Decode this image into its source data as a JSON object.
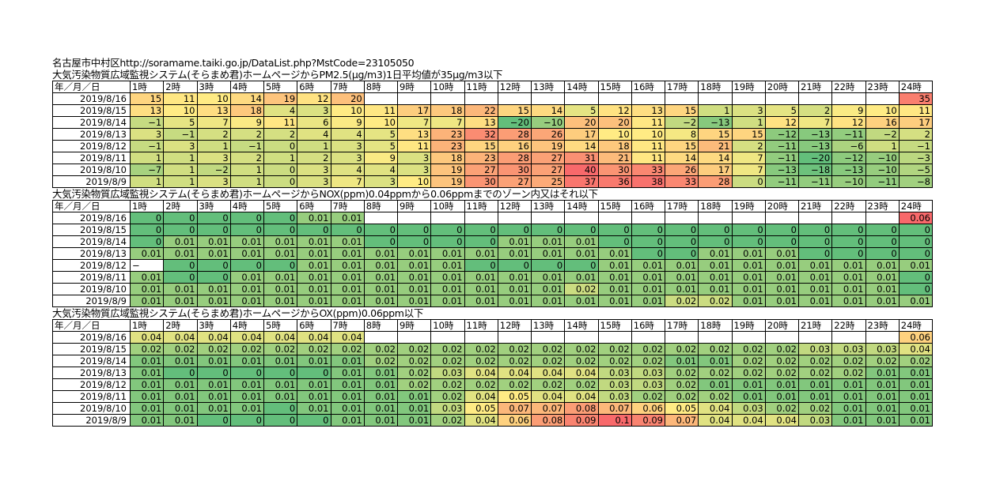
{
  "header": {
    "url_line": "名古屋市中村区http://soramame.taiki.go.jp/DataList.php?MstCode=23105050"
  },
  "columns": {
    "date_label": "年／月／日",
    "hours": [
      "1時",
      "2時",
      "3時",
      "4時",
      "5時",
      "6時",
      "7時",
      "8時",
      "9時",
      "10時",
      "11時",
      "12時",
      "13時",
      "14時",
      "15時",
      "16時",
      "17時",
      "18時",
      "19時",
      "20時",
      "21時",
      "22時",
      "23時",
      "24時"
    ]
  },
  "colors": {
    "high": "#f8696b",
    "mid": "#ffeb84",
    "low": "#63be7b"
  },
  "tables": [
    {
      "title": "大気汚染物質広域監視システム(そらまめ君)ホームページからPM2.5(μg/m3)1日平均値が35μg/m3以下",
      "color_min": -20,
      "color_max": 40,
      "rows": [
        {
          "date": "2019/8/16",
          "values": [
            "15",
            "11",
            "10",
            "14",
            "19",
            "12",
            "20",
            "",
            "",
            "",
            "",
            "",
            "",
            "",
            "",
            "",
            "",
            "",
            "",
            "",
            "",
            "",
            "",
            "35"
          ]
        },
        {
          "date": "2019/8/15",
          "values": [
            "13",
            "10",
            "13",
            "18",
            "4",
            "3",
            "10",
            "11",
            "17",
            "18",
            "22",
            "15",
            "14",
            "5",
            "12",
            "13",
            "15",
            "1",
            "3",
            "5",
            "2",
            "9",
            "10",
            "11"
          ]
        },
        {
          "date": "2019/8/14",
          "values": [
            "−1",
            "5",
            "7",
            "9",
            "11",
            "6",
            "9",
            "10",
            "7",
            "7",
            "13",
            "−20",
            "−10",
            "20",
            "20",
            "11",
            "−2",
            "−13",
            "1",
            "12",
            "7",
            "12",
            "16",
            "17"
          ]
        },
        {
          "date": "2019/8/13",
          "values": [
            "3",
            "−1",
            "2",
            "2",
            "2",
            "4",
            "4",
            "5",
            "13",
            "23",
            "32",
            "28",
            "26",
            "17",
            "10",
            "10",
            "8",
            "15",
            "15",
            "−12",
            "−13",
            "−11",
            "−2",
            "2"
          ]
        },
        {
          "date": "2019/8/12",
          "values": [
            "−1",
            "3",
            "1",
            "−1",
            "0",
            "1",
            "3",
            "5",
            "11",
            "23",
            "15",
            "16",
            "19",
            "14",
            "18",
            "11",
            "15",
            "21",
            "2",
            "−11",
            "−13",
            "−6",
            "1",
            "−1"
          ]
        },
        {
          "date": "2019/8/11",
          "values": [
            "1",
            "1",
            "3",
            "2",
            "1",
            "2",
            "3",
            "9",
            "3",
            "18",
            "23",
            "28",
            "27",
            "31",
            "21",
            "11",
            "14",
            "14",
            "7",
            "−11",
            "−20",
            "−12",
            "−10",
            "−3"
          ]
        },
        {
          "date": "2019/8/10",
          "values": [
            "−7",
            "1",
            "−2",
            "1",
            "0",
            "3",
            "4",
            "4",
            "3",
            "19",
            "27",
            "30",
            "27",
            "40",
            "30",
            "33",
            "26",
            "17",
            "7",
            "−13",
            "−18",
            "−13",
            "−10",
            "−5"
          ]
        },
        {
          "date": "2019/8/9",
          "values": [
            "1",
            "1",
            "3",
            "1",
            "0",
            "3",
            "7",
            "3",
            "10",
            "19",
            "30",
            "27",
            "25",
            "37",
            "36",
            "38",
            "33",
            "28",
            "0",
            "−11",
            "−11",
            "−10",
            "−11",
            "−8"
          ]
        }
      ]
    },
    {
      "title": "大気汚染物質広域監視システム(そらまめ君)ホームページからNOX(ppm)0.04ppmから0.06ppmまでのゾーン内又はそれ以下",
      "color_min": 0,
      "color_max": 0.06,
      "rows": [
        {
          "date": "2019/8/16",
          "values": [
            "0",
            "0",
            "0",
            "0",
            "0",
            "0.01",
            "0.01",
            "",
            "",
            "",
            "",
            "",
            "",
            "",
            "",
            "",
            "",
            "",
            "",
            "",
            "",
            "",
            "",
            "0.06"
          ]
        },
        {
          "date": "2019/8/15",
          "values": [
            "0",
            "0",
            "0",
            "0",
            "0",
            "0",
            "0",
            "0",
            "0",
            "0",
            "0",
            "0",
            "0",
            "0",
            "0",
            "0",
            "0",
            "0",
            "0",
            "0",
            "0",
            "0",
            "0",
            "0"
          ]
        },
        {
          "date": "2019/8/14",
          "values": [
            "0",
            "0.01",
            "0.01",
            "0.01",
            "0.01",
            "0.01",
            "0.01",
            "0",
            "0",
            "0",
            "0",
            "0.01",
            "0.01",
            "0.01",
            "0",
            "0",
            "0",
            "0",
            "0",
            "0",
            "0",
            "0",
            "0",
            "0"
          ]
        },
        {
          "date": "2019/8/13",
          "values": [
            "0.01",
            "0.01",
            "0.01",
            "0.01",
            "0.01",
            "0.01",
            "0.01",
            "0.01",
            "0.01",
            "0.01",
            "0.01",
            "0.01",
            "0.01",
            "0.01",
            "0.01",
            "0",
            "0",
            "0.01",
            "0.01",
            "0.01",
            "0",
            "0",
            "0",
            "0"
          ]
        },
        {
          "date": "2019/8/12",
          "values": [
            "−",
            "0",
            "0",
            "0",
            "0",
            "0.01",
            "0.01",
            "0.01",
            "0.01",
            "0.01",
            "0",
            "0",
            "0",
            "0",
            "0.01",
            "0.01",
            "0.01",
            "0.01",
            "0.01",
            "0.01",
            "0.01",
            "0.01",
            "0.01",
            "0.01"
          ]
        },
        {
          "date": "2019/8/11",
          "values": [
            "0.01",
            "0",
            "0",
            "0.01",
            "0.01",
            "0.01",
            "0.01",
            "0.01",
            "0.01",
            "0.01",
            "0.01",
            "0.01",
            "0.01",
            "0.01",
            "0.01",
            "0.01",
            "0.01",
            "0.01",
            "0.01",
            "0.01",
            "0.01",
            "0.01",
            "0.01",
            "0"
          ]
        },
        {
          "date": "2019/8/10",
          "values": [
            "0.01",
            "0.01",
            "0.01",
            "0.01",
            "0.01",
            "0.01",
            "0.01",
            "0.01",
            "0.01",
            "0.01",
            "0.01",
            "0.01",
            "0.01",
            "0.02",
            "0.01",
            "0.01",
            "0.01",
            "0.01",
            "0.01",
            "0.01",
            "0.01",
            "0.01",
            "0.01",
            "0"
          ]
        },
        {
          "date": "2019/8/9",
          "values": [
            "0.01",
            "0.01",
            "0.01",
            "0.01",
            "0.01",
            "0.01",
            "0.01",
            "0.01",
            "0.01",
            "0.01",
            "0.01",
            "0.01",
            "0.01",
            "0.01",
            "0.01",
            "0.01",
            "0.02",
            "0.02",
            "0.01",
            "0.01",
            "0.01",
            "0.01",
            "0.01",
            "0.01"
          ]
        }
      ]
    },
    {
      "title": "大気汚染物質広域監視システム(そらまめ君)ホームページからOX(ppm)0.06ppm以下",
      "color_min": 0,
      "color_max": 0.1,
      "rows": [
        {
          "date": "2019/8/16",
          "values": [
            "0.04",
            "0.04",
            "0.04",
            "0.04",
            "0.04",
            "0.04",
            "0.04",
            "",
            "",
            "",
            "",
            "",
            "",
            "",
            "",
            "",
            "",
            "",
            "",
            "",
            "",
            "",
            "",
            "0.06"
          ]
        },
        {
          "date": "2019/8/15",
          "values": [
            "0.02",
            "0.02",
            "0.02",
            "0.02",
            "0.02",
            "0.02",
            "0.02",
            "0.02",
            "0.02",
            "0.02",
            "0.02",
            "0.02",
            "0.02",
            "0.02",
            "0.02",
            "0.02",
            "0.02",
            "0.02",
            "0.02",
            "0.02",
            "0.03",
            "0.03",
            "0.03",
            "0.04"
          ]
        },
        {
          "date": "2019/8/14",
          "values": [
            "0.01",
            "0.01",
            "0.01",
            "0.01",
            "0.01",
            "0.01",
            "0.01",
            "0.02",
            "0.02",
            "0.02",
            "0.02",
            "0.02",
            "0.02",
            "0.02",
            "0.02",
            "0.02",
            "0.01",
            "0.01",
            "0.02",
            "0.02",
            "0.02",
            "0.02",
            "0.02",
            "0.02"
          ]
        },
        {
          "date": "2019/8/13",
          "values": [
            "0.01",
            "0",
            "0",
            "0",
            "0",
            "0",
            "0.01",
            "0.01",
            "0.02",
            "0.03",
            "0.04",
            "0.04",
            "0.04",
            "0.04",
            "0.03",
            "0.03",
            "0.02",
            "0.02",
            "0.02",
            "0.02",
            "0.02",
            "0.02",
            "0.01",
            "0.01"
          ]
        },
        {
          "date": "2019/8/12",
          "values": [
            "0.01",
            "0.01",
            "0.01",
            "0.01",
            "0.01",
            "0.01",
            "0.01",
            "0.01",
            "0.02",
            "0.02",
            "0.02",
            "0.02",
            "0.02",
            "0.02",
            "0.03",
            "0.03",
            "0.02",
            "0.01",
            "0.01",
            "0.01",
            "0.01",
            "0.01",
            "0.01",
            "0.01"
          ]
        },
        {
          "date": "2019/8/11",
          "values": [
            "0.01",
            "0.01",
            "0.01",
            "0.01",
            "0.01",
            "0.01",
            "0.01",
            "0.01",
            "0.01",
            "0.02",
            "0.04",
            "0.05",
            "0.04",
            "0.04",
            "0.03",
            "0.02",
            "0.02",
            "0.02",
            "0.01",
            "0.01",
            "0.01",
            "0.01",
            "0.01",
            "0.01"
          ]
        },
        {
          "date": "2019/8/10",
          "values": [
            "0.01",
            "0.01",
            "0.01",
            "0.01",
            "0",
            "0.01",
            "0.01",
            "0.01",
            "0.01",
            "0.03",
            "0.05",
            "0.07",
            "0.07",
            "0.08",
            "0.07",
            "0.06",
            "0.05",
            "0.04",
            "0.03",
            "0.02",
            "0.02",
            "0.01",
            "0.01",
            "0.01"
          ]
        },
        {
          "date": "2019/8/9",
          "values": [
            "0.01",
            "0.01",
            "0",
            "0",
            "0",
            "0",
            "0.01",
            "0.01",
            "0.01",
            "0.02",
            "0.04",
            "0.06",
            "0.08",
            "0.09",
            "0.1",
            "0.09",
            "0.07",
            "0.04",
            "0.04",
            "0.04",
            "0.03",
            "0.01",
            "0.01",
            "0.01"
          ]
        }
      ]
    }
  ]
}
